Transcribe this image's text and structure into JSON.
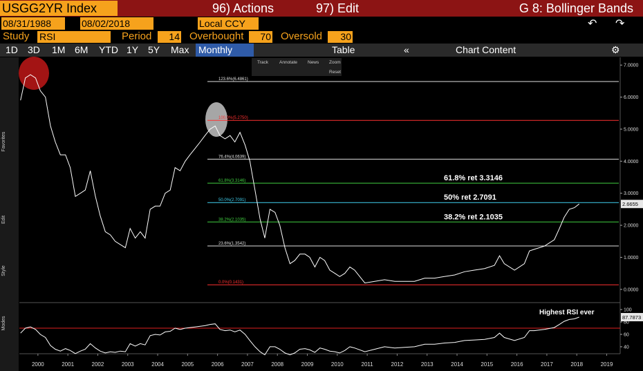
{
  "header": {
    "ticker": "USGG2YR Index",
    "actions": "96) Actions",
    "edit": "97) Edit",
    "function": "G 8: Bollinger Bands"
  },
  "range": {
    "start": "08/31/1988",
    "end": "08/02/2018",
    "currency": "Local CCY"
  },
  "study": {
    "label": "Study",
    "name": "RSI",
    "period_label": "Period",
    "period": "14",
    "overbought_label": "Overbought",
    "overbought": "70",
    "oversold_label": "Oversold",
    "oversold": "30"
  },
  "periods": [
    "1D",
    "3D",
    "1M",
    "6M",
    "YTD",
    "1Y",
    "5Y",
    "Max"
  ],
  "frequency": "Monthly",
  "table": "Table",
  "chart_content": "Chart Content",
  "chart_tools": [
    "Track",
    "Annotate",
    "News",
    "Zoom"
  ],
  "reset": "Reset",
  "side_labels": [
    "Favorites",
    "Edit",
    "Style",
    "Modes"
  ],
  "chart_data": [
    {
      "type": "line",
      "color": "#ffffff",
      "x": [
        1999.92,
        2000.08,
        2000.25,
        2000.42,
        2000.58,
        2000.75,
        2000.92,
        2001.08,
        2001.25,
        2001.42,
        2001.58,
        2001.75,
        2001.92,
        2002.08,
        2002.25,
        2002.42,
        2002.58,
        2002.75,
        2002.92,
        2003.08,
        2003.25,
        2003.42,
        2003.58,
        2003.75,
        2003.92,
        2004.08,
        2004.25,
        2004.42,
        2004.58,
        2004.75,
        2004.92,
        2005.08,
        2005.25,
        2005.42,
        2005.58,
        2005.75,
        2005.92,
        2006.08,
        2006.25,
        2006.42,
        2006.58,
        2006.75,
        2006.92,
        2007.08,
        2007.25,
        2007.42,
        2007.58,
        2007.75,
        2007.92,
        2008.08,
        2008.25,
        2008.42,
        2008.58,
        2008.75,
        2008.92,
        2009.08,
        2009.25,
        2009.42,
        2009.58,
        2009.75,
        2009.92,
        2010.08,
        2010.25,
        2010.42,
        2010.58,
        2010.75,
        2010.92,
        2011.08,
        2011.42,
        2011.75,
        2012.08,
        2012.42,
        2012.75,
        2013.08,
        2013.42,
        2013.75,
        2014.08,
        2014.42,
        2014.75,
        2015.08,
        2015.42,
        2015.75,
        2015.92,
        2016.08,
        2016.42,
        2016.75,
        2016.92,
        2017.08,
        2017.42,
        2017.75,
        2017.92,
        2018.08,
        2018.25,
        2018.42,
        2018.58
      ],
      "values": [
        5.9,
        6.6,
        6.7,
        6.6,
        6.2,
        6.0,
        5.1,
        4.6,
        4.2,
        4.2,
        3.8,
        2.9,
        3.0,
        3.1,
        3.7,
        2.9,
        2.3,
        1.8,
        1.7,
        1.5,
        1.4,
        1.3,
        1.9,
        1.6,
        1.8,
        1.6,
        2.5,
        2.6,
        2.6,
        3.0,
        3.1,
        3.8,
        3.7,
        4.0,
        4.2,
        4.4,
        4.6,
        4.8,
        5.0,
        5.1,
        4.8,
        4.7,
        4.8,
        4.6,
        4.9,
        4.5,
        4.0,
        3.1,
        2.2,
        1.6,
        2.5,
        2.4,
        2.0,
        1.3,
        0.8,
        0.9,
        1.1,
        1.1,
        1.0,
        0.7,
        1.0,
        0.9,
        0.6,
        0.5,
        0.4,
        0.5,
        0.7,
        0.6,
        0.2,
        0.25,
        0.3,
        0.25,
        0.25,
        0.25,
        0.35,
        0.35,
        0.4,
        0.45,
        0.55,
        0.6,
        0.65,
        0.75,
        1.05,
        0.8,
        0.6,
        0.8,
        1.2,
        1.25,
        1.35,
        1.55,
        1.9,
        2.25,
        2.5,
        2.55,
        2.6655
      ],
      "xlim": [
        1999.88,
        2019.95
      ],
      "ylim": [
        -0.37,
        7.22
      ],
      "yticks": [
        {
          "value": 0,
          "label": "0.0000"
        },
        {
          "value": 1,
          "label": "1.0000"
        },
        {
          "value": 2,
          "label": "2.0000"
        },
        {
          "value": 3,
          "label": "3.0000"
        },
        {
          "value": 4,
          "label": "4.0000"
        },
        {
          "value": 5,
          "label": "5.0000"
        },
        {
          "value": 6,
          "label": "6.0000"
        },
        {
          "value": 7,
          "label": "7.0000"
        }
      ],
      "levels": [
        {
          "value": 6.4861,
          "label": "123.6%(6.4861)",
          "color": "#e0e0e0"
        },
        {
          "value": 5.275,
          "label": "100.0%(5.2750)",
          "color": "#ff3030"
        },
        {
          "value": 4.0639,
          "label": "76.4%(4.0639)",
          "color": "#e0e0e0"
        },
        {
          "value": 3.3146,
          "label": "61.8%(3.3146)",
          "color": "#40d040",
          "note": "61.8% ret 3.3146"
        },
        {
          "value": 2.7091,
          "label": "50.0%(2.7091)",
          "color": "#40d0f0",
          "note": "50% ret 2.7091"
        },
        {
          "value": 2.1035,
          "label": "38.2%(2.1035)",
          "color": "#40d040",
          "note": "38.2% ret 2.1035"
        },
        {
          "value": 1.3542,
          "label": "23.6%(1.3542)",
          "color": "#e0e0e0"
        },
        {
          "value": 0.1431,
          "label": "0.0%(0.1431)",
          "color": "#ff3030"
        }
      ]
    },
    {
      "type": "line",
      "color": "#ffffff",
      "annotation": "Highest RSI ever",
      "x": [
        1999.92,
        2000.08,
        2000.25,
        2000.42,
        2000.58,
        2000.75,
        2000.92,
        2001.08,
        2001.25,
        2001.42,
        2001.58,
        2001.75,
        2001.92,
        2002.08,
        2002.25,
        2002.42,
        2002.58,
        2002.75,
        2002.92,
        2003.08,
        2003.25,
        2003.42,
        2003.58,
        2003.75,
        2003.92,
        2004.08,
        2004.25,
        2004.42,
        2004.58,
        2004.75,
        2004.92,
        2005.08,
        2005.25,
        2005.42,
        2005.58,
        2005.75,
        2005.92,
        2006.08,
        2006.25,
        2006.42,
        2006.58,
        2006.75,
        2006.92,
        2007.08,
        2007.25,
        2007.42,
        2007.58,
        2007.75,
        2007.92,
        2008.08,
        2008.25,
        2008.42,
        2008.58,
        2008.75,
        2008.92,
        2009.08,
        2009.25,
        2009.42,
        2009.58,
        2009.75,
        2009.92,
        2010.08,
        2010.25,
        2010.42,
        2010.58,
        2010.75,
        2010.92,
        2011.08,
        2011.42,
        2011.75,
        2012.08,
        2012.42,
        2012.75,
        2013.08,
        2013.42,
        2013.75,
        2014.08,
        2014.42,
        2014.75,
        2015.08,
        2015.42,
        2015.75,
        2015.92,
        2016.08,
        2016.42,
        2016.75,
        2016.92,
        2017.08,
        2017.42,
        2017.75,
        2017.92,
        2018.08,
        2018.25,
        2018.42,
        2018.58
      ],
      "values": [
        62,
        70,
        72,
        68,
        60,
        55,
        42,
        36,
        33,
        37,
        34,
        29,
        33,
        36,
        45,
        38,
        33,
        30,
        32,
        31,
        33,
        32,
        45,
        41,
        45,
        43,
        58,
        60,
        59,
        64,
        65,
        70,
        68,
        70,
        71,
        72,
        73,
        74,
        76,
        77,
        68,
        66,
        67,
        64,
        67,
        60,
        50,
        40,
        32,
        27,
        40,
        40,
        36,
        30,
        27,
        30,
        36,
        37,
        35,
        31,
        38,
        36,
        33,
        32,
        30,
        34,
        40,
        38,
        32,
        36,
        40,
        38,
        39,
        40,
        44,
        44,
        46,
        47,
        50,
        51,
        52,
        55,
        62,
        55,
        50,
        55,
        66,
        66,
        68,
        71,
        76,
        81,
        84,
        85,
        87.7873
      ],
      "xlim": [
        1999.88,
        2019.95
      ],
      "ylim": [
        31,
        109
      ],
      "yticks": [
        40,
        60,
        80,
        100
      ],
      "overbought": 70,
      "xticks": [
        {
          "value": 2000.5,
          "label": "2000"
        },
        {
          "value": 2001.5,
          "label": "2001"
        },
        {
          "value": 2002.5,
          "label": "2002"
        },
        {
          "value": 2003.5,
          "label": "2003"
        },
        {
          "value": 2004.5,
          "label": "2004"
        },
        {
          "value": 2005.5,
          "label": "2005"
        },
        {
          "value": 2006.5,
          "label": "2006"
        },
        {
          "value": 2007.5,
          "label": "2007"
        },
        {
          "value": 2008.5,
          "label": "2008"
        },
        {
          "value": 2009.5,
          "label": "2009"
        },
        {
          "value": 2010.5,
          "label": "2010"
        },
        {
          "value": 2011.5,
          "label": "2011"
        },
        {
          "value": 2012.5,
          "label": "2012"
        },
        {
          "value": 2013.5,
          "label": "2013"
        },
        {
          "value": 2014.5,
          "label": "2014"
        },
        {
          "value": 2015.5,
          "label": "2015"
        },
        {
          "value": 2016.5,
          "label": "2016"
        },
        {
          "value": 2017.5,
          "label": "2017"
        },
        {
          "value": 2018.5,
          "label": "2018"
        },
        {
          "value": 2019.5,
          "label": "2019"
        }
      ]
    }
  ]
}
